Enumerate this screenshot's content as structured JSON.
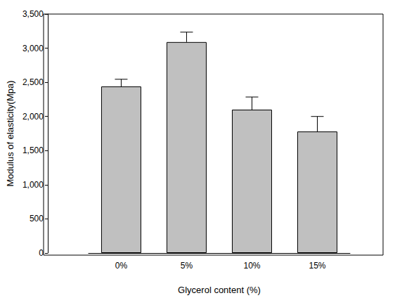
{
  "chart_data": {
    "type": "bar",
    "x_label": "Glycerol content (%)",
    "y_label": "Modulus of elasticity(Mpa)",
    "categories": [
      "0%",
      "5%",
      "10%",
      "15%"
    ],
    "values": [
      2440,
      3090,
      2100,
      1780
    ],
    "errors": [
      105,
      145,
      185,
      220
    ],
    "color": "#c0c0c0",
    "ylim": [
      0,
      3500
    ],
    "yticks": [
      0,
      500,
      1000,
      1500,
      2000,
      2500,
      3000,
      3500
    ],
    "grid": false
  }
}
